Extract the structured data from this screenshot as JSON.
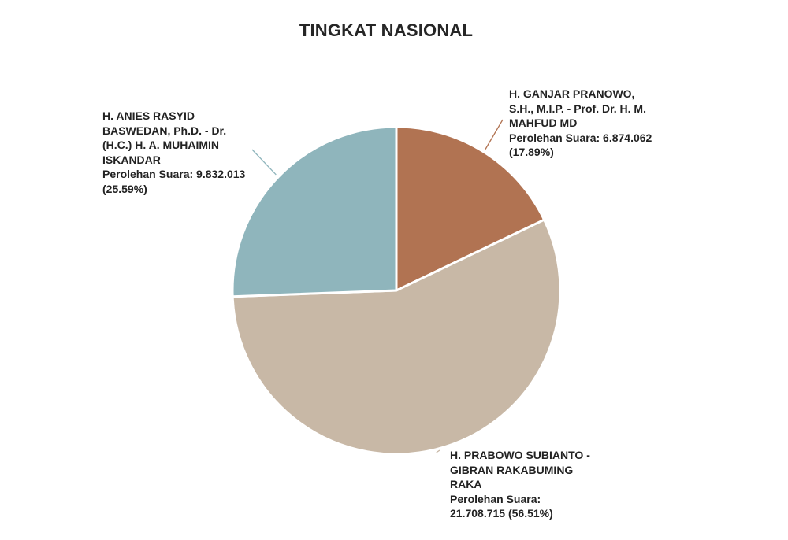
{
  "title": "TINGKAT NASIONAL",
  "chart_data": {
    "type": "pie",
    "title": "TINGKAT NASIONAL",
    "slices": [
      {
        "key": "ganjar",
        "name": "H. GANJAR PRANOWO,\nS.H., M.I.P. - Prof. Dr. H. M.\nMAHFUD MD",
        "votes_label": "Perolehan Suara: 6.874.062",
        "percent_label": "(17.89%)",
        "votes": 6874062,
        "percent": 17.89,
        "color": "#B17352"
      },
      {
        "key": "prabowo",
        "name": "H. PRABOWO SUBIANTO -\nGIBRAN RAKABUMING\nRAKA",
        "votes_label": "Perolehan Suara:",
        "percent_label": "21.708.715 (56.51%)",
        "votes": 21708715,
        "percent": 56.51,
        "color": "#C8B8A6"
      },
      {
        "key": "anies",
        "name": "H. ANIES RASYID\nBASWEDAN, Ph.D. - Dr.\n(H.C.) H. A. MUHAIMIN\nISKANDAR",
        "votes_label": "Perolehan Suara: 9.832.013",
        "percent_label": "(25.59%)",
        "votes": 9832013,
        "percent": 25.59,
        "color": "#8FB5BC"
      }
    ]
  }
}
